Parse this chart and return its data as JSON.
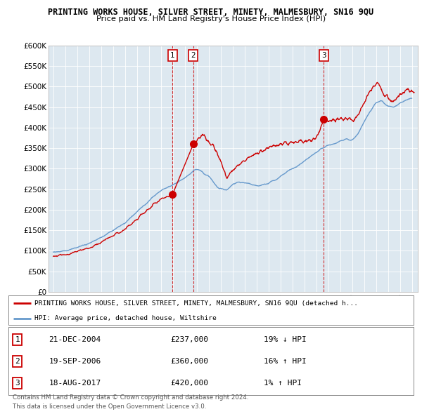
{
  "title": "PRINTING WORKS HOUSE, SILVER STREET, MINETY, MALMESBURY, SN16 9QU",
  "subtitle": "Price paid vs. HM Land Registry's House Price Index (HPI)",
  "ylim": [
    0,
    600000
  ],
  "yticks": [
    0,
    50000,
    100000,
    150000,
    200000,
    250000,
    300000,
    350000,
    400000,
    450000,
    500000,
    550000,
    600000
  ],
  "ytick_labels": [
    "£0",
    "£50K",
    "£100K",
    "£150K",
    "£200K",
    "£250K",
    "£300K",
    "£350K",
    "£400K",
    "£450K",
    "£500K",
    "£550K",
    "£600K"
  ],
  "xlim_start": 1994.6,
  "xlim_end": 2025.5,
  "transactions": [
    {
      "label": "1",
      "year": 2004.97,
      "price": 237000,
      "date": "21-DEC-2004",
      "price_str": "£237,000",
      "hpi_str": "19% ↓ HPI"
    },
    {
      "label": "2",
      "year": 2006.72,
      "price": 360000,
      "date": "19-SEP-2006",
      "price_str": "£360,000",
      "hpi_str": "16% ↑ HPI"
    },
    {
      "label": "3",
      "year": 2017.63,
      "price": 420000,
      "date": "18-AUG-2017",
      "price_str": "£420,000",
      "hpi_str": "1% ↑ HPI"
    }
  ],
  "legend_line1": "PRINTING WORKS HOUSE, SILVER STREET, MINETY, MALMESBURY, SN16 9QU (detached h...",
  "legend_line2": "HPI: Average price, detached house, Wiltshire",
  "footer_line1": "Contains HM Land Registry data © Crown copyright and database right 2024.",
  "footer_line2": "This data is licensed under the Open Government Licence v3.0.",
  "red_color": "#cc0000",
  "blue_color": "#6699cc",
  "chart_bg": "#dde8f0",
  "plot_bg": "#ffffff",
  "grid_color": "#ffffff"
}
